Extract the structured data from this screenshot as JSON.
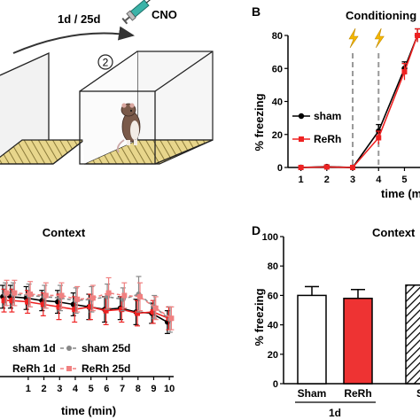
{
  "panel_letters": {
    "b": "B",
    "d": "D"
  },
  "schematic": {
    "interval_label": "1d / 25d",
    "drug_label": "CNO",
    "step_label": "2"
  },
  "chart_data": [
    {
      "id": "B",
      "type": "line",
      "title": "Conditioning",
      "xlabel": "time (m",
      "ylabel": "% freezing",
      "xlim": [
        0.5,
        5.6
      ],
      "ylim": [
        0,
        80
      ],
      "x_ticks": [
        "1",
        "2",
        "3",
        "4",
        "5"
      ],
      "y_ticks": [
        "0",
        "20",
        "40",
        "60",
        "80"
      ],
      "shock_times": [
        3,
        4
      ],
      "legend": "center-left",
      "series": [
        {
          "name": "sham",
          "color": "#000000",
          "x": [
            1,
            2,
            3,
            4,
            5,
            5.5
          ],
          "y": [
            0,
            0.5,
            0,
            22,
            60,
            80
          ],
          "err": [
            0.5,
            1,
            0.5,
            4,
            4,
            4
          ]
        },
        {
          "name": "ReRh",
          "color": "#ee2222",
          "x": [
            1,
            2,
            3,
            4,
            5,
            5.5
          ],
          "y": [
            0,
            0.3,
            0,
            18,
            58,
            80
          ],
          "err": [
            0.5,
            1,
            0.5,
            4,
            5,
            4
          ]
        }
      ]
    },
    {
      "id": "C",
      "type": "line",
      "title": "Context",
      "xlabel": "time (min)",
      "ylabel": "",
      "xlim": [
        -0.8,
        10.5
      ],
      "ylim": [
        0,
        100
      ],
      "x_ticks": [
        "1",
        "2",
        "3",
        "4",
        "5",
        "6",
        "7",
        "8",
        "9",
        "10"
      ],
      "legend": "bottom-left",
      "series": [
        {
          "name": "sham 1d",
          "color": "#000000",
          "style": "solid",
          "x": [
            -0.5,
            0,
            1,
            2,
            3,
            4,
            5,
            6,
            7,
            8,
            9,
            10
          ],
          "y": [
            63,
            63,
            62,
            60,
            59,
            57,
            55,
            53,
            54,
            51,
            50,
            43
          ],
          "err": [
            9,
            9,
            9,
            8,
            9,
            9,
            10,
            10,
            9,
            10,
            8,
            9
          ]
        },
        {
          "name": "ReRh 1d",
          "color": "#ee2222",
          "style": "solid",
          "x": [
            -0.5,
            0,
            1,
            2,
            3,
            4,
            5,
            6,
            7,
            8,
            9,
            10
          ],
          "y": [
            60,
            60,
            59,
            57,
            55,
            53,
            55,
            52,
            53,
            50,
            51,
            46
          ],
          "err": [
            9,
            9,
            9,
            9,
            10,
            10,
            10,
            11,
            10,
            10,
            9,
            9
          ]
        },
        {
          "name": "sham 25d",
          "color": "#888888",
          "style": "dashed",
          "x": [
            -0.5,
            0,
            1,
            2,
            3,
            4,
            5,
            6,
            7,
            8,
            9,
            10
          ],
          "y": [
            65,
            65,
            64,
            63,
            62,
            60,
            61,
            63,
            61,
            65,
            55,
            45
          ],
          "err": [
            9,
            9,
            9,
            9,
            10,
            10,
            10,
            10,
            9,
            14,
            9,
            10
          ]
        },
        {
          "name": "ReRh 25d",
          "color": "#f08080",
          "style": "dashed",
          "x": [
            -0.5,
            0,
            1,
            2,
            3,
            4,
            5,
            6,
            7,
            8,
            9,
            10
          ],
          "y": [
            66,
            66,
            65,
            64,
            64,
            61,
            62,
            66,
            64,
            63,
            54,
            46
          ],
          "err": [
            10,
            10,
            10,
            10,
            10,
            10,
            10,
            12,
            10,
            11,
            9,
            9
          ]
        }
      ]
    },
    {
      "id": "D",
      "type": "bar",
      "title": "Context",
      "ylabel": "% freezing",
      "ylim": [
        0,
        100
      ],
      "y_ticks": [
        "0",
        "20",
        "40",
        "60",
        "80",
        "100"
      ],
      "categories": [
        "Sham",
        "ReRh",
        "S"
      ],
      "group_label": "1d",
      "values": [
        60,
        58,
        67
      ],
      "errors": [
        6,
        6,
        0
      ],
      "colors": [
        "#ffffff",
        "#ee3333",
        "hatched"
      ]
    }
  ]
}
